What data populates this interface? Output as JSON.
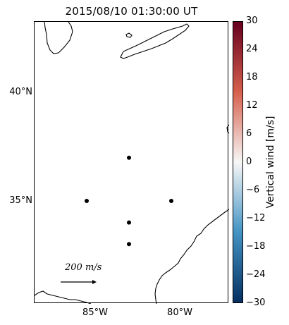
{
  "title": "2015/08/10 01:30:00 UT",
  "map": {
    "lat_labels": [
      "40°N",
      "35°N"
    ],
    "lon_labels": [
      "85°W",
      "80°W"
    ],
    "scale_arrow_label": "200 m/s",
    "stations": [
      {
        "lon": -83.0,
        "lat": 37.0
      },
      {
        "lon": -85.5,
        "lat": 35.0
      },
      {
        "lon": -80.5,
        "lat": 35.0
      },
      {
        "lon": -83.0,
        "lat": 34.0
      },
      {
        "lon": -83.0,
        "lat": 33.0
      }
    ]
  },
  "colorbar": {
    "label": "Vertical wind [m/s]",
    "ticks": [
      "30",
      "24",
      "18",
      "12",
      "6",
      "0",
      "−6",
      "−12",
      "−18",
      "−24",
      "−30"
    ],
    "range": [
      -30,
      30
    ],
    "colormap": "RdBu_r",
    "colors": {
      "top": "#67001f",
      "upper": "#d6604d",
      "mid": "#f7f7f7",
      "lower": "#4393c3",
      "bottom": "#053061"
    }
  }
}
